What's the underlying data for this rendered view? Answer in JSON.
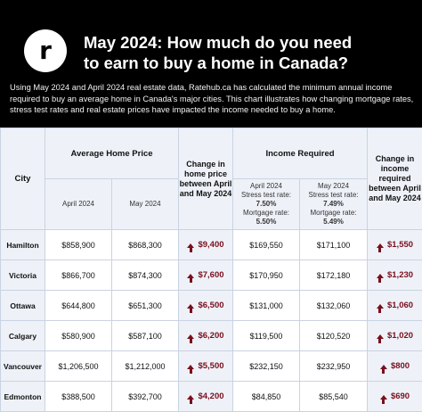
{
  "header": {
    "logo_text": "r",
    "title": "May 2024: How much do you need\nto earn to buy a home in Canada?",
    "intro": "Using May 2024 and April 2024 real estate data, Ratehub.ca has calculated the minimum annual income required to buy an average home in Canada's major cities. This chart illustrates how changing mortgage rates, stress test rates and real estate prices have impacted the income needed to buy a home."
  },
  "table": {
    "col_city": "City",
    "group_price": "Average Home Price",
    "group_income": "Income Required",
    "change_price_header": "Change in home price between April and May 2024",
    "change_income_header": "Change in income required between April and May 2024",
    "sub_april": "April 2024",
    "sub_may": "May 2024",
    "income_april": {
      "label": "April 2024",
      "stress_label": "Stress test rate:",
      "stress_value": "7.50%",
      "mortgage_label": "Mortgage rate:",
      "mortgage_value": "5.50%"
    },
    "income_may": {
      "label": "May 2024",
      "stress_label": "Stress test rate:",
      "stress_value": "7.49%",
      "mortgage_label": "Mortgage rate:",
      "mortgage_value": "5.49%"
    },
    "rows": [
      {
        "city": "Hamilton",
        "price_april": "$858,900",
        "price_may": "$868,300",
        "price_change": "$9,400",
        "income_april": "$169,550",
        "income_may": "$171,100",
        "income_change": "$1,550"
      },
      {
        "city": "Victoria",
        "price_april": "$866,700",
        "price_may": "$874,300",
        "price_change": "$7,600",
        "income_april": "$170,950",
        "income_may": "$172,180",
        "income_change": "$1,230"
      },
      {
        "city": "Ottawa",
        "price_april": "$644,800",
        "price_may": "$651,300",
        "price_change": "$6,500",
        "income_april": "$131,000",
        "income_may": "$132,060",
        "income_change": "$1,060"
      },
      {
        "city": "Calgary",
        "price_april": "$580,900",
        "price_may": "$587,100",
        "price_change": "$6,200",
        "income_april": "$119,500",
        "income_may": "$120,520",
        "income_change": "$1,020"
      },
      {
        "city": "Vancouver",
        "price_april": "$1,206,500",
        "price_may": "$1,212,000",
        "price_change": "$5,500",
        "income_april": "$232,150",
        "income_may": "$232,950",
        "income_change": "$800"
      },
      {
        "city": "Edmonton",
        "price_april": "$388,500",
        "price_may": "$392,700",
        "price_change": "$4,200",
        "income_april": "$84,850",
        "income_may": "$85,540",
        "income_change": "$690"
      }
    ]
  },
  "colors": {
    "header_bg": "#000000",
    "table_tint": "#eef2f8",
    "increase": "#7a0f1d"
  },
  "icons": {
    "change": "up-arrow-icon"
  }
}
